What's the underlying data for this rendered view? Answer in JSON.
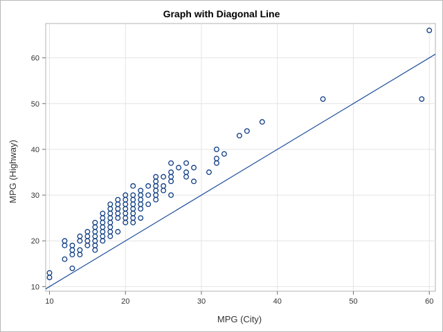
{
  "chart_data": {
    "type": "scatter",
    "title": "Graph with Diagonal Line",
    "xlabel": "MPG (City)",
    "ylabel": "MPG (Highway)",
    "xlim": [
      9.5,
      60.8
    ],
    "ylim": [
      9.0,
      67.5
    ],
    "x_ticks": [
      10,
      20,
      30,
      40,
      50,
      60
    ],
    "y_ticks": [
      10,
      20,
      30,
      40,
      50,
      60
    ],
    "grid": true,
    "marker_color": "#0b3a82",
    "line_color": "#1f4e9c",
    "reference_line": {
      "label": "Diagonal Line",
      "intercept": 0,
      "slope": 1
    },
    "series": [
      {
        "name": "MPG (Highway)",
        "points": [
          [
            10,
            12
          ],
          [
            10,
            13
          ],
          [
            12,
            16
          ],
          [
            12,
            19
          ],
          [
            12,
            20
          ],
          [
            13,
            14
          ],
          [
            13,
            17
          ],
          [
            13,
            18
          ],
          [
            13,
            19
          ],
          [
            14,
            17
          ],
          [
            14,
            18
          ],
          [
            14,
            20
          ],
          [
            14,
            21
          ],
          [
            15,
            19
          ],
          [
            15,
            20
          ],
          [
            15,
            21
          ],
          [
            15,
            22
          ],
          [
            16,
            18
          ],
          [
            16,
            19
          ],
          [
            16,
            20
          ],
          [
            16,
            21
          ],
          [
            16,
            22
          ],
          [
            16,
            23
          ],
          [
            16,
            24
          ],
          [
            17,
            20
          ],
          [
            17,
            21
          ],
          [
            17,
            22
          ],
          [
            17,
            23
          ],
          [
            17,
            24
          ],
          [
            17,
            25
          ],
          [
            17,
            26
          ],
          [
            18,
            21
          ],
          [
            18,
            22
          ],
          [
            18,
            23
          ],
          [
            18,
            24
          ],
          [
            18,
            25
          ],
          [
            18,
            26
          ],
          [
            18,
            27
          ],
          [
            18,
            28
          ],
          [
            19,
            22
          ],
          [
            19,
            25
          ],
          [
            19,
            26
          ],
          [
            19,
            27
          ],
          [
            19,
            28
          ],
          [
            19,
            29
          ],
          [
            20,
            24
          ],
          [
            20,
            25
          ],
          [
            20,
            26
          ],
          [
            20,
            27
          ],
          [
            20,
            28
          ],
          [
            20,
            29
          ],
          [
            20,
            30
          ],
          [
            21,
            24
          ],
          [
            21,
            25
          ],
          [
            21,
            26
          ],
          [
            21,
            27
          ],
          [
            21,
            28
          ],
          [
            21,
            29
          ],
          [
            21,
            30
          ],
          [
            21,
            32
          ],
          [
            22,
            25
          ],
          [
            22,
            27
          ],
          [
            22,
            28
          ],
          [
            22,
            29
          ],
          [
            22,
            30
          ],
          [
            22,
            31
          ],
          [
            23,
            28
          ],
          [
            23,
            30
          ],
          [
            23,
            32
          ],
          [
            24,
            29
          ],
          [
            24,
            30
          ],
          [
            24,
            31
          ],
          [
            24,
            32
          ],
          [
            24,
            33
          ],
          [
            24,
            34
          ],
          [
            25,
            31
          ],
          [
            25,
            32
          ],
          [
            25,
            34
          ],
          [
            26,
            30
          ],
          [
            26,
            33
          ],
          [
            26,
            34
          ],
          [
            26,
            35
          ],
          [
            26,
            37
          ],
          [
            27,
            36
          ],
          [
            28,
            34
          ],
          [
            28,
            35
          ],
          [
            28,
            37
          ],
          [
            29,
            33
          ],
          [
            29,
            36
          ],
          [
            31,
            35
          ],
          [
            32,
            37
          ],
          [
            32,
            38
          ],
          [
            32,
            40
          ],
          [
            33,
            39
          ],
          [
            35,
            43
          ],
          [
            36,
            44
          ],
          [
            38,
            46
          ],
          [
            46,
            51
          ],
          [
            59,
            51
          ],
          [
            60,
            66
          ]
        ]
      }
    ]
  }
}
